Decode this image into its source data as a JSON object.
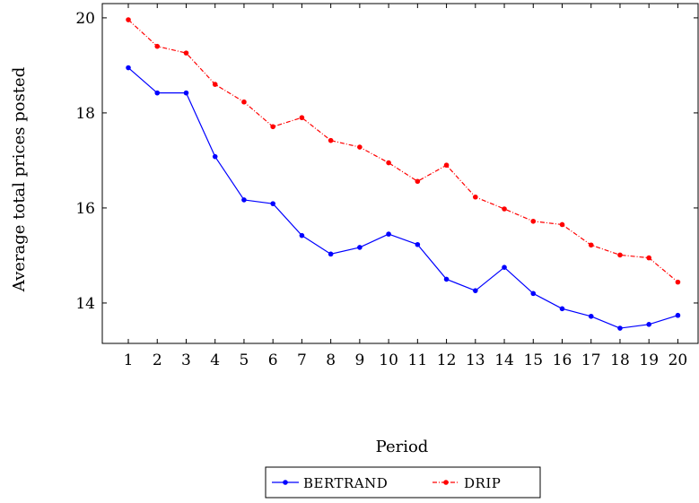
{
  "chart_data": {
    "type": "line",
    "title": "",
    "xlabel": "Period",
    "ylabel": "Average total prices posted",
    "x": [
      1,
      2,
      3,
      4,
      5,
      6,
      7,
      8,
      9,
      10,
      11,
      12,
      13,
      14,
      15,
      16,
      17,
      18,
      19,
      20
    ],
    "xlim": [
      0.1,
      20.7
    ],
    "ylim": [
      13.15,
      20.3
    ],
    "yticks": [
      14,
      16,
      18,
      20
    ],
    "grid": false,
    "legend_position": "bottom-center",
    "series": [
      {
        "name": "BERTRAND",
        "color": "#0000ff",
        "line_style": "solid",
        "marker": "circle",
        "values": [
          18.95,
          18.42,
          18.42,
          17.08,
          16.17,
          16.09,
          15.42,
          15.03,
          15.17,
          15.45,
          15.23,
          14.5,
          14.26,
          14.75,
          14.2,
          13.88,
          13.72,
          13.47,
          13.55,
          13.74
        ]
      },
      {
        "name": "DRIP",
        "color": "#ff0000",
        "line_style": "dash-dot",
        "marker": "circle",
        "values": [
          19.96,
          19.4,
          19.26,
          18.6,
          18.23,
          17.71,
          17.9,
          17.42,
          17.28,
          16.95,
          16.56,
          16.9,
          16.23,
          15.98,
          15.72,
          15.65,
          15.22,
          15.01,
          14.95,
          14.44
        ]
      }
    ]
  }
}
